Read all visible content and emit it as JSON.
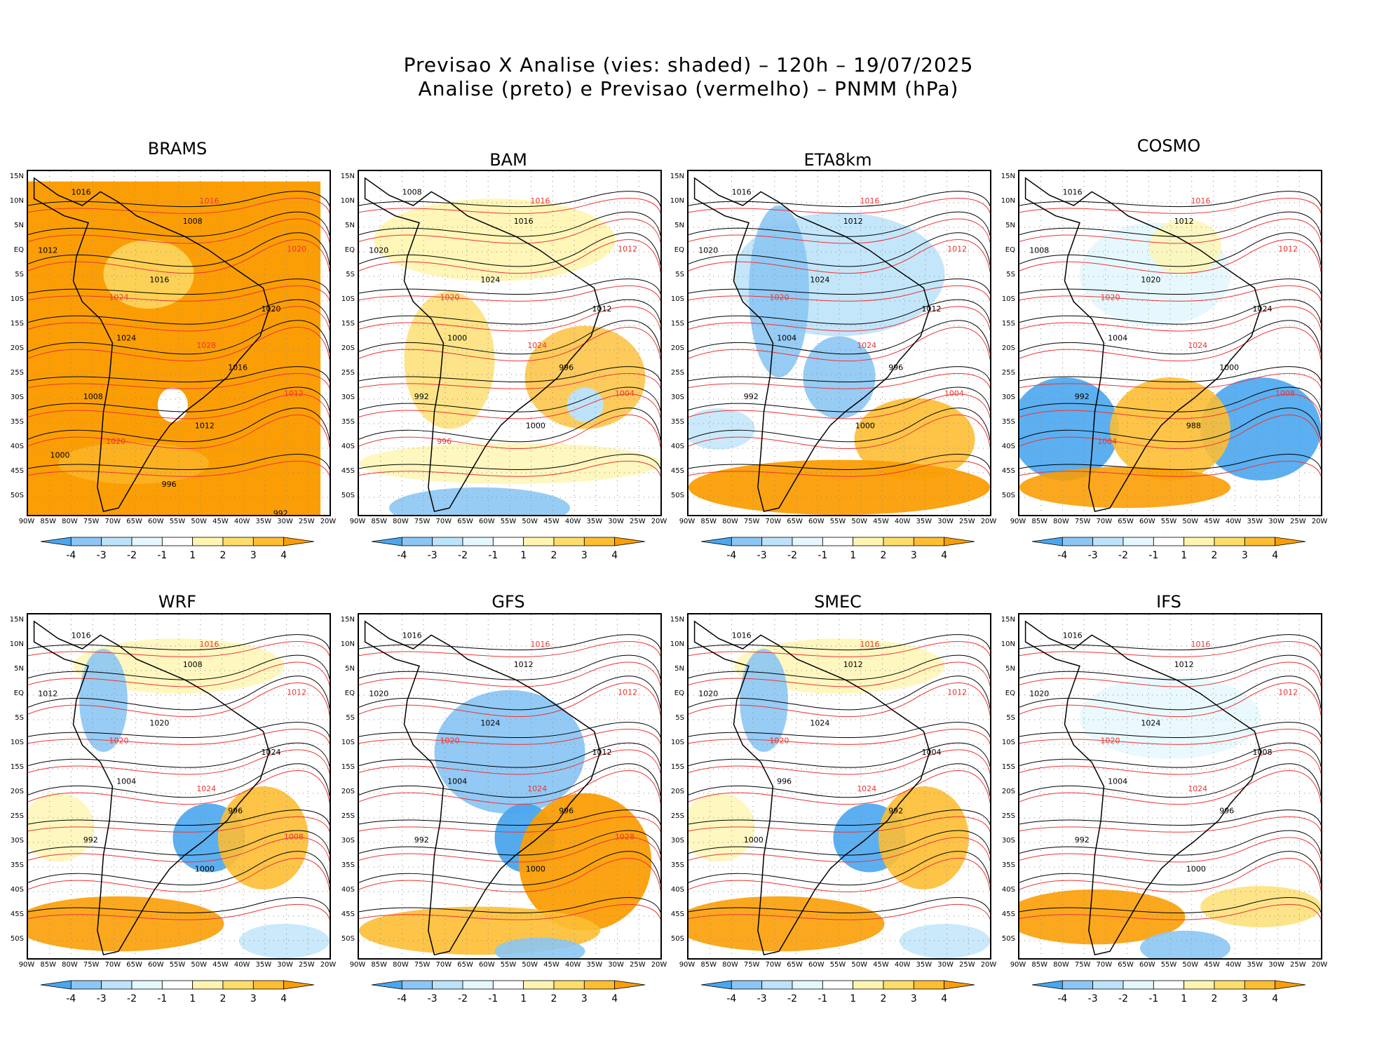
{
  "title_line1": "Previsao X Analise (vies: shaded) – 120h – 19/07/2025",
  "title_line2": "Analise (preto) e Previsao (vermelho) – PNMM (hPa)",
  "lat_ticks": [
    "15N",
    "10N",
    "5N",
    "EQ",
    "5S",
    "10S",
    "15S",
    "20S",
    "25S",
    "30S",
    "35S",
    "40S",
    "45S",
    "50S"
  ],
  "lon_ticks": [
    "90W",
    "85W",
    "80W",
    "75W",
    "70W",
    "65W",
    "60W",
    "55W",
    "50W",
    "45W",
    "40W",
    "35W",
    "30W",
    "25W",
    "20W"
  ],
  "colorbar": {
    "labels": [
      "-4",
      "-3",
      "-2",
      "-1",
      "1",
      "2",
      "3",
      "4"
    ],
    "colors": [
      "#4aa6ee",
      "#8cc6f4",
      "#bde3fa",
      "#e3f7fd",
      "#ffffff",
      "#fff5b0",
      "#fedd6a",
      "#fdbe33",
      "#fb9e05"
    ]
  },
  "colors": {
    "analysis": "#000000",
    "forecast": "#ee3333",
    "positive_bias": "#fba20f",
    "negative_bias": "#5aaeea"
  },
  "panels": [
    {
      "name": "BRAMS",
      "bias": "pos_strong",
      "labels_black": [
        "1016",
        "1008",
        "1012",
        "1016",
        "1020",
        "1024",
        "1016",
        "1008",
        "1012",
        "1000",
        "996",
        "992"
      ],
      "labels_red": [
        "1016",
        "1020",
        "1024",
        "1028",
        "1012",
        "1020"
      ]
    },
    {
      "name": "BAM",
      "bias": "mixed_pos",
      "labels_black": [
        "1008",
        "1016",
        "1020",
        "1024",
        "1012",
        "1000",
        "996",
        "992",
        "1000"
      ],
      "labels_red": [
        "1016",
        "1012",
        "1020",
        "1024",
        "1004",
        "996"
      ]
    },
    {
      "name": "ETA8km",
      "bias": "neg_land",
      "labels_black": [
        "1016",
        "1012",
        "1020",
        "1024",
        "1012",
        "1004",
        "996",
        "992",
        "1000"
      ],
      "labels_red": [
        "1016",
        "1012",
        "1020",
        "1024",
        "1004"
      ]
    },
    {
      "name": "COSMO",
      "bias": "mixed_south",
      "labels_black": [
        "1016",
        "1012",
        "1008",
        "1020",
        "1024",
        "1004",
        "1000",
        "992",
        "988"
      ],
      "labels_red": [
        "1016",
        "1012",
        "1020",
        "1024",
        "1008",
        "1004"
      ]
    },
    {
      "name": "WRF",
      "bias": "mixed",
      "labels_black": [
        "1016",
        "1008",
        "1012",
        "1020",
        "1024",
        "1004",
        "996",
        "992",
        "1000"
      ],
      "labels_red": [
        "1016",
        "1012",
        "1020",
        "1024",
        "1008"
      ]
    },
    {
      "name": "GFS",
      "bias": "neg_land_pos_ocean",
      "labels_black": [
        "1016",
        "1012",
        "1020",
        "1024",
        "1012",
        "1004",
        "996",
        "992",
        "1000"
      ],
      "labels_red": [
        "1016",
        "1012",
        "1020",
        "1024",
        "1028"
      ]
    },
    {
      "name": "SMEC",
      "bias": "mixed",
      "labels_black": [
        "1016",
        "1012",
        "1020",
        "1024",
        "1004",
        "996",
        "992",
        "1000"
      ],
      "labels_red": [
        "1016",
        "1012",
        "1020",
        "1024"
      ]
    },
    {
      "name": "IFS",
      "bias": "weak",
      "labels_black": [
        "1016",
        "1012",
        "1020",
        "1024",
        "1008",
        "1004",
        "996",
        "992",
        "1000"
      ],
      "labels_red": [
        "1016",
        "1012",
        "1020",
        "1024"
      ]
    }
  ]
}
